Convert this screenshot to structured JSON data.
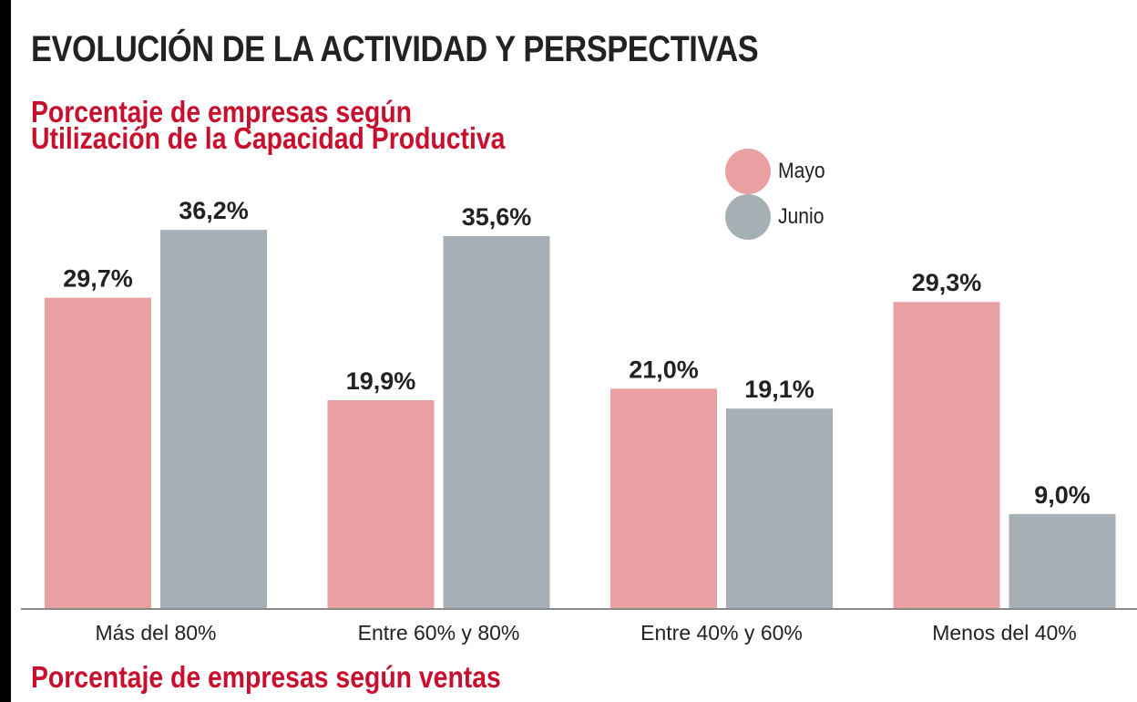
{
  "header": {
    "title": "EVOLUCIÓN DE LA ACTIVIDAD Y PERSPECTIVAS",
    "subtitle_line1": "Porcentaje de empresas según",
    "subtitle_line2": "Utilización de la Capacidad Productiva",
    "next_section_title": "Porcentaje de empresas según ventas"
  },
  "colors": {
    "mayo": "#e8a0a3",
    "junio": "#a6afb4",
    "accent_red": "#c8102e",
    "axis": "#8a8a8a"
  },
  "chart_data": {
    "type": "bar",
    "title": "Porcentaje de empresas según Utilización de la Capacidad Productiva",
    "xlabel": "",
    "ylabel": "",
    "ylim": [
      0,
      40
    ],
    "grid": false,
    "legend_position": "top-right",
    "categories": [
      "Más del 80%",
      "Entre 60% y 80%",
      "Entre 40% y 60%",
      "Menos del 40%"
    ],
    "series": [
      {
        "name": "Mayo",
        "values": [
          29.7,
          19.9,
          21.0,
          29.3
        ],
        "labels": [
          "29,7%",
          "19,9%",
          "21,0%",
          "29,3%"
        ]
      },
      {
        "name": "Junio",
        "values": [
          36.2,
          35.6,
          19.1,
          9.0
        ],
        "labels": [
          "36,2%",
          "35,6%",
          "19,1%",
          "9,0%"
        ]
      }
    ]
  }
}
